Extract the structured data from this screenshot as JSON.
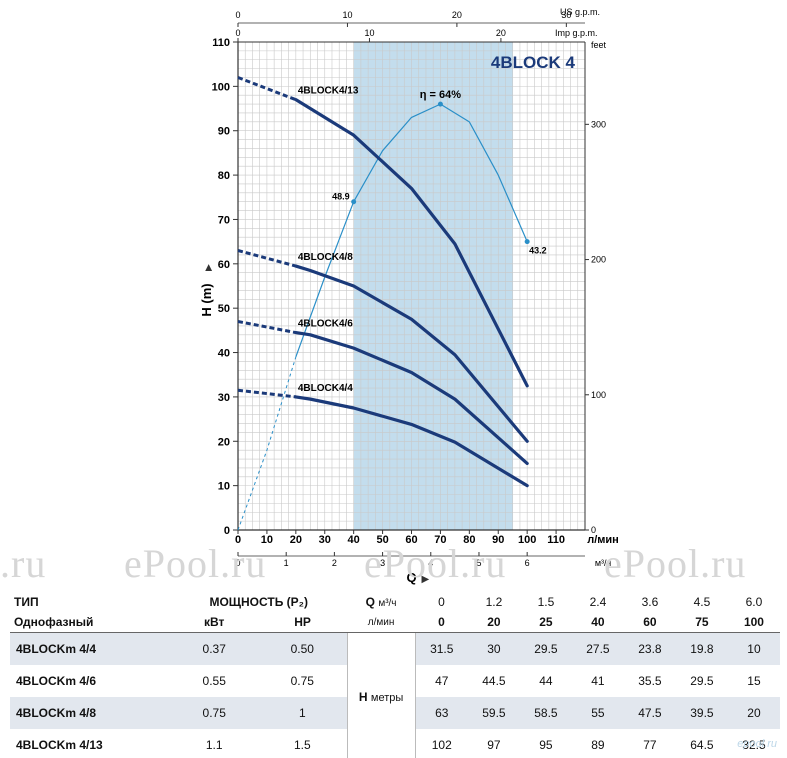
{
  "watermark": ".ru ePool.ru ePool.ru ePool.ru",
  "corner_logo": "epool.ru",
  "colors": {
    "curve": "#1b3a7a",
    "eff": "#2a8fc8",
    "band": "#a9cfe6",
    "grid": "#c9c9c9"
  },
  "chart_data": {
    "type": "line",
    "title": "4BLOCK 4",
    "ylabel": "H (m)",
    "xlabel": "Q",
    "x_unit": "л/мин",
    "ylim": [
      0,
      110
    ],
    "xlim": [
      0,
      120
    ],
    "x_ticks": [
      0,
      10,
      20,
      30,
      40,
      50,
      60,
      70,
      80,
      90,
      100,
      110
    ],
    "y_ticks": [
      0,
      10,
      20,
      30,
      40,
      50,
      60,
      70,
      80,
      90,
      100,
      110
    ],
    "m3h_label": "м³/ч",
    "m3h_ticks": [
      0,
      1,
      2,
      3,
      4,
      5,
      6
    ],
    "feet_label": "feet",
    "feet_ticks": [
      0,
      100,
      200,
      300
    ],
    "us_label": "US g.p.m.",
    "us_ticks": [
      0,
      10,
      20,
      30
    ],
    "imp_label": "Imp g.p.m.",
    "imp_ticks": [
      0,
      10,
      20
    ],
    "operating_band": [
      40,
      95
    ],
    "series": [
      {
        "name": "4BLOCK4/13",
        "x": [
          0,
          20,
          25,
          40,
          60,
          75,
          100
        ],
        "y": [
          102,
          97,
          95,
          89,
          77,
          64.5,
          32.5
        ]
      },
      {
        "name": "4BLOCK4/8",
        "x": [
          0,
          20,
          25,
          40,
          60,
          75,
          100
        ],
        "y": [
          63,
          59.5,
          58.5,
          55,
          47.5,
          39.5,
          20
        ]
      },
      {
        "name": "4BLOCK4/6",
        "x": [
          0,
          20,
          25,
          40,
          60,
          75,
          100
        ],
        "y": [
          47,
          44.5,
          44,
          41,
          35.5,
          29.5,
          15
        ]
      },
      {
        "name": "4BLOCK4/4",
        "x": [
          0,
          20,
          25,
          40,
          60,
          75,
          100
        ],
        "y": [
          31.5,
          30,
          29.5,
          27.5,
          23.8,
          19.8,
          10
        ]
      }
    ],
    "efficiency": {
      "label": "η = 64%",
      "x": [
        0,
        10,
        20,
        30,
        40,
        50,
        60,
        70,
        80,
        90,
        100
      ],
      "y": [
        0,
        18,
        39,
        57,
        74,
        85.5,
        93,
        96,
        92,
        80,
        65
      ],
      "points": [
        {
          "x": 40,
          "y": 74,
          "label": "48.9"
        },
        {
          "x": 70,
          "y": 96,
          "label": ""
        },
        {
          "x": 100,
          "y": 65,
          "label": "43.2"
        }
      ]
    }
  },
  "table": {
    "col_type": "ТИП",
    "col_power": "МОЩНОСТЬ (P₂)",
    "single_phase": "Однофазный",
    "kw": "кВт",
    "hp": "HP",
    "q": "Q",
    "q_m3h": "м³/ч",
    "q_lmin": "л/мин",
    "h_label": "H",
    "h_unit": "метры",
    "m3h": [
      "0",
      "1.2",
      "1.5",
      "2.4",
      "3.6",
      "4.5",
      "6.0"
    ],
    "lmin": [
      "0",
      "20",
      "25",
      "40",
      "60",
      "75",
      "100"
    ],
    "rows": [
      {
        "name": "4BLOCKm 4/4",
        "kw": "0.37",
        "hp": "0.50",
        "h": [
          "31.5",
          "30",
          "29.5",
          "27.5",
          "23.8",
          "19.8",
          "10"
        ]
      },
      {
        "name": "4BLOCKm 4/6",
        "kw": "0.55",
        "hp": "0.75",
        "h": [
          "47",
          "44.5",
          "44",
          "41",
          "35.5",
          "29.5",
          "15"
        ]
      },
      {
        "name": "4BLOCKm 4/8",
        "kw": "0.75",
        "hp": "1",
        "h": [
          "63",
          "59.5",
          "58.5",
          "55",
          "47.5",
          "39.5",
          "20"
        ]
      },
      {
        "name": "4BLOCKm 4/13",
        "kw": "1.1",
        "hp": "1.5",
        "h": [
          "102",
          "97",
          "95",
          "89",
          "77",
          "64.5",
          "32.5"
        ]
      }
    ]
  }
}
